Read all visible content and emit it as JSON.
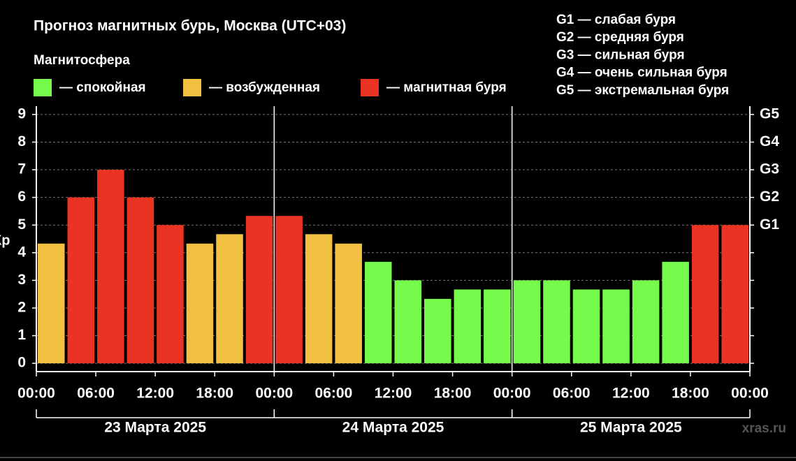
{
  "chart_data": {
    "type": "bar",
    "title": "Прогноз магнитных бурь, Москва (UTC+03)",
    "subtitle": "Магнитосфера",
    "y_label": "Кр",
    "x": [
      0,
      3,
      6,
      9,
      12,
      15,
      18,
      21,
      24,
      27,
      30,
      33,
      36,
      39,
      42,
      45,
      48,
      51,
      54,
      57,
      60,
      63,
      66,
      69
    ],
    "values": [
      4.33,
      6,
      7,
      6,
      5,
      4.33,
      4.67,
      5.33,
      5.33,
      4.67,
      4.33,
      3.67,
      3,
      2.33,
      2.67,
      2.67,
      3,
      3,
      2.67,
      2.67,
      3,
      3.67,
      5,
      5
    ],
    "colors": [
      "#f2c040",
      "#ea3323",
      "#ea3323",
      "#ea3323",
      "#ea3323",
      "#f2c040",
      "#f2c040",
      "#ea3323",
      "#ea3323",
      "#f2c040",
      "#f2c040",
      "#76fb4c",
      "#76fb4c",
      "#76fb4c",
      "#76fb4c",
      "#76fb4c",
      "#76fb4c",
      "#76fb4c",
      "#76fb4c",
      "#76fb4c",
      "#76fb4c",
      "#76fb4c",
      "#ea3323",
      "#ea3323"
    ],
    "bar_width": 3,
    "xlim": [
      0,
      72
    ],
    "xticks": [
      {
        "value": 0,
        "label": "00:00"
      },
      {
        "value": 6,
        "label": "06:00"
      },
      {
        "value": 12,
        "label": "12:00"
      },
      {
        "value": 18,
        "label": "18:00"
      },
      {
        "value": 24,
        "label": "00:00"
      },
      {
        "value": 30,
        "label": "06:00"
      },
      {
        "value": 36,
        "label": "12:00"
      },
      {
        "value": 42,
        "label": "18:00"
      },
      {
        "value": 48,
        "label": "00:00"
      },
      {
        "value": 54,
        "label": "06:00"
      },
      {
        "value": 60,
        "label": "12:00"
      },
      {
        "value": 66,
        "label": "18:00"
      },
      {
        "value": 72,
        "label": "00:00"
      }
    ],
    "ylim": [
      -0.3,
      9.3
    ],
    "yticks": [
      0,
      1,
      2,
      3,
      4,
      5,
      6,
      7,
      8,
      9
    ],
    "y2ticks": [
      {
        "value": 5,
        "label": "G1"
      },
      {
        "value": 6,
        "label": "G2"
      },
      {
        "value": 7,
        "label": "G3"
      },
      {
        "value": 8,
        "label": "G4"
      },
      {
        "value": 9,
        "label": "G5"
      }
    ],
    "grid": true,
    "legend": [
      {
        "label": "— спокойная",
        "color": "#76fb4c"
      },
      {
        "label": "— возбужденная",
        "color": "#f2c040"
      },
      {
        "label": "— магнитная буря",
        "color": "#ea3323"
      }
    ],
    "scale_notes": [
      "G1 — слабая буря",
      "G2 — средняя буря",
      "G3 — сильная буря",
      "G4 — очень сильная буря",
      "G5 — экстремальная буря"
    ],
    "days": [
      {
        "label": "23 Марта 2025",
        "span": [
          0,
          24
        ]
      },
      {
        "label": "24 Марта 2025",
        "span": [
          24,
          48
        ]
      },
      {
        "label": "25 Марта 2025",
        "span": [
          48,
          72
        ]
      }
    ],
    "watermark": "xras.ru"
  }
}
